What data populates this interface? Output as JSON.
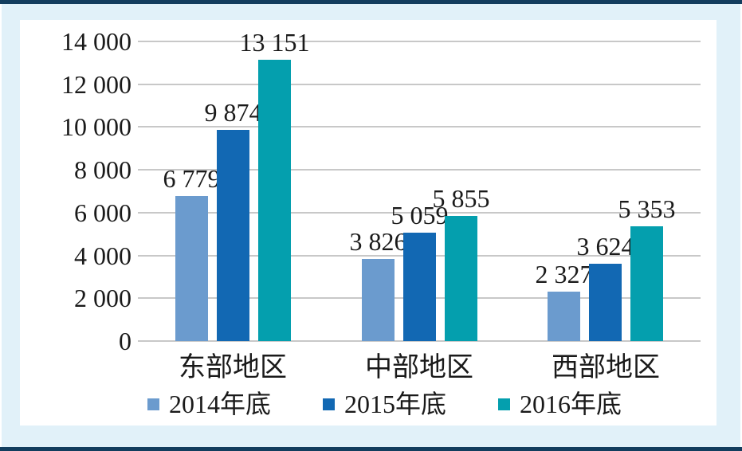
{
  "chart_data": {
    "type": "bar",
    "categories": [
      "东部地区",
      "中部地区",
      "西部地区"
    ],
    "series": [
      {
        "name": "2014年底",
        "color": "#6b9bce",
        "values": [
          6779,
          3826,
          2327
        ],
        "labels": [
          "6 779",
          "3 826",
          "2 327"
        ]
      },
      {
        "name": "2015年底",
        "color": "#1268b3",
        "values": [
          9874,
          5059,
          3624
        ],
        "labels": [
          "9 874",
          "5 059",
          "3 624"
        ]
      },
      {
        "name": "2016年底",
        "color": "#049fae",
        "values": [
          13151,
          5855,
          5353
        ],
        "labels": [
          "13 151",
          "5 855",
          "5 353"
        ]
      }
    ],
    "title": "",
    "xlabel": "",
    "ylabel": "",
    "ylim": [
      0,
      14000
    ],
    "ytick_step": 2000,
    "ytick_labels": [
      "0",
      "2 000",
      "4 000",
      "6 000",
      "8 000",
      "10 000",
      "12 000",
      "14 000"
    ],
    "grid": true,
    "legend_position": "bottom"
  },
  "style": {
    "frame_background": "#e1f1f9",
    "rule_color": "#123d5e",
    "panel_background": "#ffffff",
    "gridline_color": "#c8c8c8",
    "text_color": "#1a1a1a"
  },
  "layout_hint": {
    "group_lefts": [
      47,
      281,
      514
    ],
    "group_width": 145,
    "category_centers": [
      267,
      501,
      735
    ]
  }
}
